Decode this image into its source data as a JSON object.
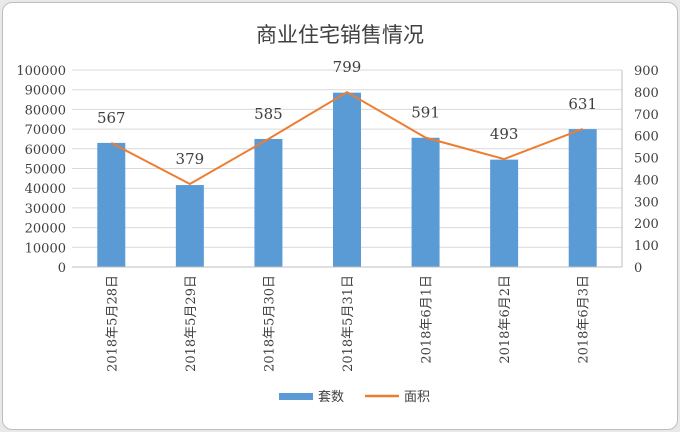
{
  "chart_data": {
    "type": "bar+line",
    "title": "商业住宅销售情况",
    "categories": [
      "2018年5月28日",
      "2018年5月29日",
      "2018年5月30日",
      "2018年5月31日",
      "2018年6月1日",
      "2018年6月2日",
      "2018年6月3日"
    ],
    "series": [
      {
        "name": "套数",
        "type": "bar",
        "axis": "left",
        "color": "#5b9bd5",
        "values": [
          63000,
          41600,
          65000,
          88500,
          65600,
          54500,
          70000
        ]
      },
      {
        "name": "面积",
        "type": "line",
        "axis": "right",
        "color": "#ed7d31",
        "values": [
          567,
          379,
          585,
          799,
          591,
          493,
          631
        ],
        "data_labels": [
          "567",
          "379",
          "585",
          "799",
          "591",
          "493",
          "631"
        ]
      }
    ],
    "left_axis": {
      "min": 0,
      "max": 100000,
      "ticks": [
        "0",
        "10000",
        "20000",
        "30000",
        "40000",
        "50000",
        "60000",
        "70000",
        "80000",
        "90000",
        "100000"
      ]
    },
    "right_axis": {
      "min": 0,
      "max": 900,
      "ticks": [
        "0",
        "100",
        "200",
        "300",
        "400",
        "500",
        "600",
        "700",
        "800",
        "900"
      ]
    },
    "grid": true,
    "legend": "bottom"
  }
}
